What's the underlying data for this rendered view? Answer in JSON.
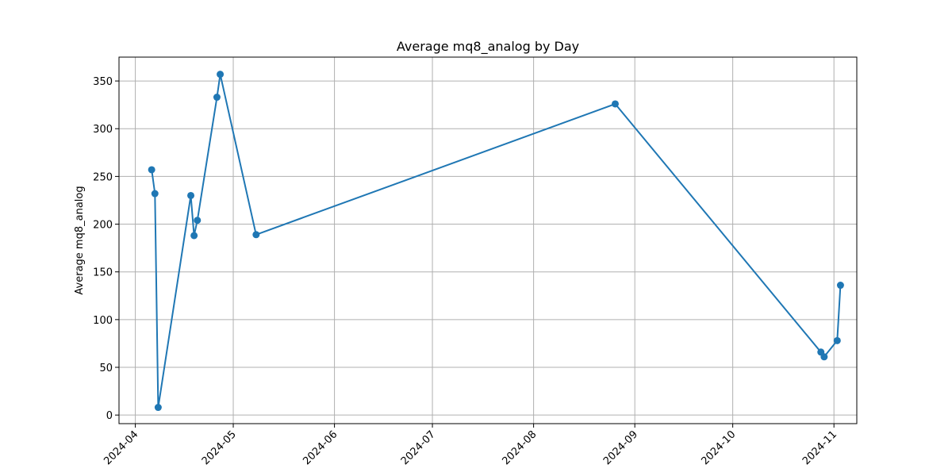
{
  "chart_data": {
    "type": "line",
    "title": "Average mq8_analog by Day",
    "xlabel": "",
    "ylabel": "Average mq8_analog",
    "x_tick_labels": [
      "2024-04",
      "2024-05",
      "2024-06",
      "2024-07",
      "2024-08",
      "2024-09",
      "2024-10",
      "2024-11"
    ],
    "x_tick_dates": [
      "2024-04-01",
      "2024-05-01",
      "2024-06-01",
      "2024-07-01",
      "2024-08-01",
      "2024-09-01",
      "2024-10-01",
      "2024-11-01"
    ],
    "y_ticks": [
      0,
      50,
      100,
      150,
      200,
      250,
      300,
      350
    ],
    "xlim": [
      "2024-03-27",
      "2024-11-08"
    ],
    "ylim": [
      -9,
      375
    ],
    "grid": true,
    "legend": "none",
    "series": [
      {
        "color": "#1f77b4",
        "marker": "circle",
        "x": [
          "2024-04-06",
          "2024-04-07",
          "2024-04-08",
          "2024-04-18",
          "2024-04-19",
          "2024-04-20",
          "2024-04-26",
          "2024-04-27",
          "2024-05-08",
          "2024-08-26",
          "2024-10-28",
          "2024-10-29",
          "2024-11-02",
          "2024-11-03"
        ],
        "y": [
          257,
          232,
          8,
          230,
          188,
          204,
          333,
          357,
          189,
          326,
          66,
          61,
          78,
          136
        ]
      }
    ]
  }
}
